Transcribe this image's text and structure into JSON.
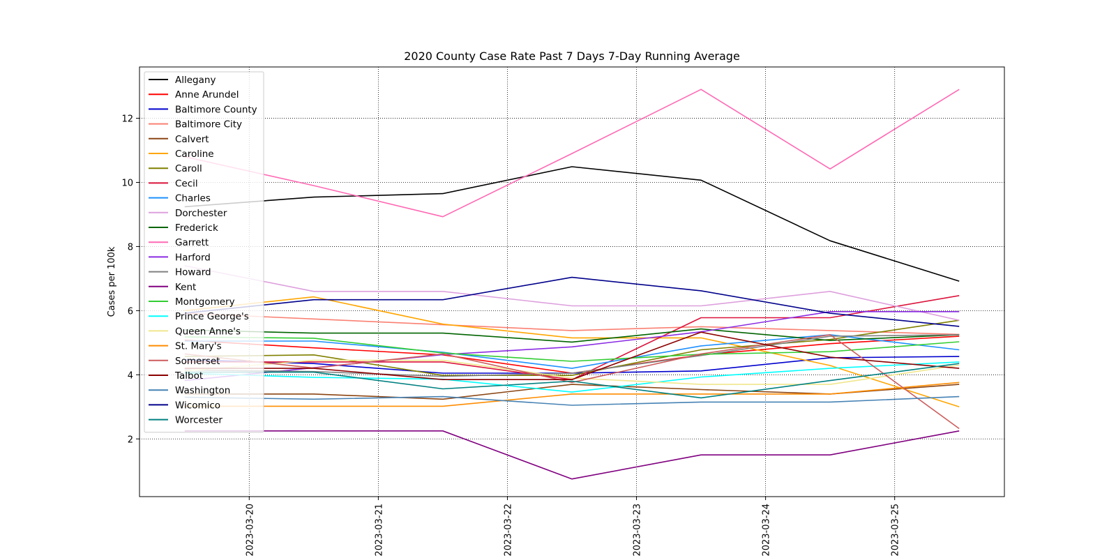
{
  "chart_data": {
    "type": "line",
    "title": "2020 County Case Rate  Past 7 Days 7-Day Running Average",
    "xlabel": "",
    "ylabel": "Cases per 100k",
    "x": [
      "2023-03-19 12:00",
      "2023-03-20 12:00",
      "2023-03-21 12:00",
      "2023-03-22 12:00",
      "2023-03-23 12:00",
      "2023-03-24 12:00",
      "2023-03-25 12:00"
    ],
    "xticks": [
      "2023-03-20",
      "2023-03-21",
      "2023-03-22",
      "2023-03-23",
      "2023-03-24",
      "2023-03-25"
    ],
    "xlim": [
      "2023-03-19 03:36",
      "2023-03-25 20:24"
    ],
    "yticks": [
      2,
      4,
      6,
      8,
      10,
      12
    ],
    "ylim": [
      0.2,
      13.6
    ],
    "grid": true,
    "legend_position": "upper-left",
    "series": [
      {
        "name": "Allegany",
        "color": "#000000",
        "values": [
          9.24,
          9.54,
          9.65,
          10.49,
          10.07,
          8.18,
          6.92
        ]
      },
      {
        "name": "Anne Arundel",
        "color": "#ff0000",
        "values": [
          5.08,
          4.84,
          4.62,
          4.05,
          4.62,
          4.97,
          5.2
        ]
      },
      {
        "name": "Baltimore County",
        "color": "#0000cd",
        "values": [
          4.47,
          4.35,
          4.05,
          4.05,
          4.12,
          4.53,
          4.57
        ]
      },
      {
        "name": "Baltimore City",
        "color": "#fa8072",
        "values": [
          5.92,
          5.74,
          5.56,
          5.38,
          5.5,
          5.38,
          5.26
        ]
      },
      {
        "name": "Calvert",
        "color": "#8b4513",
        "values": [
          3.4,
          3.4,
          3.24,
          3.7,
          3.54,
          3.4,
          3.7
        ]
      },
      {
        "name": "Caroline",
        "color": "#ffa500",
        "values": [
          6.0,
          6.43,
          5.58,
          5.15,
          5.15,
          4.29,
          3.0
        ]
      },
      {
        "name": "Caroll",
        "color": "#808000",
        "values": [
          4.57,
          4.62,
          3.98,
          3.98,
          4.78,
          5.1,
          5.7
        ]
      },
      {
        "name": "Cecil",
        "color": "#dc143c",
        "values": [
          4.4,
          4.4,
          4.4,
          3.85,
          5.78,
          5.78,
          6.47
        ]
      },
      {
        "name": "Charles",
        "color": "#1e90ff",
        "values": [
          5.05,
          5.05,
          4.7,
          4.2,
          4.9,
          5.25,
          4.78
        ]
      },
      {
        "name": "Dorchester",
        "color": "#dda0dd",
        "values": [
          7.4,
          6.6,
          6.6,
          6.15,
          6.15,
          6.6,
          5.7
        ]
      },
      {
        "name": "Frederick",
        "color": "#006400",
        "values": [
          5.4,
          5.3,
          5.3,
          5.02,
          5.43,
          5.07,
          5.25
        ]
      },
      {
        "name": "Garrett",
        "color": "#ff69b4",
        "values": [
          10.8,
          9.9,
          8.93,
          10.9,
          12.9,
          10.42,
          12.9
        ]
      },
      {
        "name": "Harford",
        "color": "#8a2be2",
        "values": [
          3.82,
          4.22,
          4.63,
          4.87,
          5.34,
          5.97,
          5.97
        ]
      },
      {
        "name": "Howard",
        "color": "#808080",
        "values": [
          4.15,
          4.1,
          3.95,
          4.05,
          4.6,
          5.2,
          5.25
        ]
      },
      {
        "name": "Kent",
        "color": "#800080",
        "values": [
          2.25,
          2.25,
          2.25,
          0.75,
          1.5,
          1.5,
          2.25
        ]
      },
      {
        "name": "Montgomery",
        "color": "#32cd32",
        "values": [
          5.18,
          5.14,
          4.68,
          4.42,
          4.64,
          4.72,
          5.03
        ]
      },
      {
        "name": "Prince George's",
        "color": "#00ffff",
        "values": [
          4.05,
          3.92,
          3.86,
          3.46,
          3.93,
          4.2,
          4.4
        ]
      },
      {
        "name": "Queen Anne's",
        "color": "#f0e68c",
        "values": [
          4.12,
          4.45,
          4.45,
          3.9,
          3.7,
          3.7,
          4.3
        ]
      },
      {
        "name": "St. Mary's",
        "color": "#ff8c00",
        "values": [
          3.02,
          3.02,
          3.02,
          3.4,
          3.4,
          3.4,
          3.76
        ]
      },
      {
        "name": "Somerset",
        "color": "#cd5c5c",
        "values": [
          4.65,
          4.21,
          4.65,
          3.76,
          4.65,
          5.25,
          2.32
        ]
      },
      {
        "name": "Talbot",
        "color": "#8b0000",
        "values": [
          4.2,
          4.2,
          3.85,
          3.85,
          5.33,
          4.55,
          4.2
        ]
      },
      {
        "name": "Washington",
        "color": "#4682b4",
        "values": [
          3.3,
          3.24,
          3.32,
          3.05,
          3.15,
          3.15,
          3.32
        ]
      },
      {
        "name": "Wicomico",
        "color": "#00008b",
        "values": [
          5.92,
          6.34,
          6.34,
          7.04,
          6.62,
          5.92,
          5.51
        ]
      },
      {
        "name": "Worcester",
        "color": "#008080",
        "values": [
          4.08,
          4.08,
          3.56,
          3.8,
          3.28,
          3.82,
          4.35
        ]
      }
    ]
  }
}
